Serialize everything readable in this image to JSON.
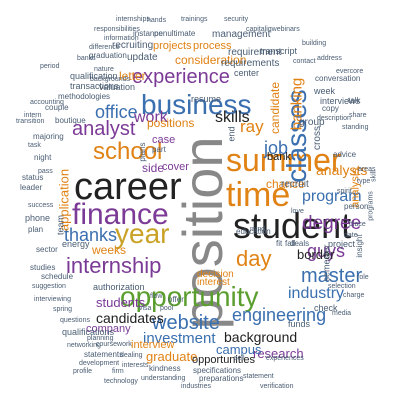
{
  "colors": {
    "black": "#222222",
    "grey": "#888888",
    "orange": "#e08214",
    "blue": "#3a6fb0",
    "green": "#5a9e2e",
    "purple": "#7b3a96",
    "gold": "#c9a227",
    "slate": "#4a5d73"
  },
  "words": [
    {
      "text": "position",
      "color": "grey",
      "rot": 270
    },
    {
      "text": "career",
      "color": "black",
      "rot": 0
    },
    {
      "text": "student",
      "color": "black",
      "rot": 0
    },
    {
      "text": "summer",
      "color": "orange",
      "rot": 0
    },
    {
      "text": "time",
      "color": "orange",
      "rot": 0
    },
    {
      "text": "opportunity",
      "color": "green",
      "rot": 0
    },
    {
      "text": "finance",
      "color": "purple",
      "rot": 0
    },
    {
      "text": "year",
      "color": "gold",
      "rot": 0
    },
    {
      "text": "business",
      "color": "blue",
      "rot": 0
    },
    {
      "text": "school",
      "color": "orange",
      "rot": 0
    },
    {
      "text": "classes",
      "color": "blue",
      "rot": 270
    },
    {
      "text": "internship",
      "color": "purple",
      "rot": 0
    },
    {
      "text": "experience",
      "color": "purple",
      "rot": 0
    },
    {
      "text": "analyst",
      "color": "purple",
      "rot": 0
    },
    {
      "text": "day",
      "color": "orange",
      "rot": 0
    },
    {
      "text": "website",
      "color": "blue",
      "rot": 0
    },
    {
      "text": "master",
      "color": "blue",
      "rot": 0
    },
    {
      "text": "degree",
      "color": "purple",
      "rot": 0
    },
    {
      "text": "engineering",
      "color": "blue",
      "rot": 0
    },
    {
      "text": "thanks",
      "color": "blue",
      "rot": 0
    },
    {
      "text": "office",
      "color": "blue",
      "rot": 0
    },
    {
      "text": "job",
      "color": "blue",
      "rot": 0
    },
    {
      "text": "program",
      "color": "blue",
      "rot": 0
    },
    {
      "text": "guys",
      "color": "purple",
      "rot": 0
    },
    {
      "text": "industry",
      "color": "blue",
      "rot": 0
    },
    {
      "text": "investment",
      "color": "blue",
      "rot": 0
    },
    {
      "text": "candidates",
      "color": "black",
      "rot": 0
    },
    {
      "text": "skills",
      "color": "black",
      "rot": 0
    },
    {
      "text": "work",
      "color": "purple",
      "rot": 0
    },
    {
      "text": "banking",
      "color": "orange",
      "rot": 270
    },
    {
      "text": "ray",
      "color": "orange",
      "rot": 0
    },
    {
      "text": "analysts",
      "color": "orange",
      "rot": 0
    },
    {
      "text": "students",
      "color": "purple",
      "rot": 0
    },
    {
      "text": "background",
      "color": "black",
      "rot": 0
    },
    {
      "text": "research",
      "color": "purple",
      "rot": 0
    },
    {
      "text": "graduate",
      "color": "orange",
      "rot": 0
    },
    {
      "text": "campus",
      "color": "blue",
      "rot": 0
    },
    {
      "text": "company",
      "color": "purple",
      "rot": 0
    },
    {
      "text": "positions",
      "color": "orange",
      "rot": 0
    },
    {
      "text": "consideration",
      "color": "orange",
      "rot": 0
    },
    {
      "text": "process",
      "color": "orange",
      "rot": 0
    },
    {
      "text": "projects",
      "color": "orange",
      "rot": 0
    },
    {
      "text": "management",
      "color": "slate",
      "rot": 0
    },
    {
      "text": "requirement",
      "color": "slate",
      "rot": 0
    },
    {
      "text": "requirements",
      "color": "slate",
      "rot": 0
    },
    {
      "text": "candidate",
      "color": "orange",
      "rot": 270
    },
    {
      "text": "letter",
      "color": "orange",
      "rot": 0
    },
    {
      "text": "weeks",
      "color": "orange",
      "rot": 0
    },
    {
      "text": "application",
      "color": "orange",
      "rot": 270
    },
    {
      "text": "chance",
      "color": "orange",
      "rot": 0
    },
    {
      "text": "border",
      "color": "black",
      "rot": 0
    },
    {
      "text": "bank",
      "color": "black",
      "rot": 0
    },
    {
      "text": "interview",
      "color": "orange",
      "rot": 0
    },
    {
      "text": "opportunities",
      "color": "black",
      "rot": 0
    },
    {
      "text": "decision",
      "color": "orange",
      "rot": 0
    },
    {
      "text": "interest",
      "color": "orange",
      "rot": 0
    },
    {
      "text": "side",
      "color": "purple",
      "rot": 0
    },
    {
      "text": "cover",
      "color": "purple",
      "rot": 0
    },
    {
      "text": "case",
      "color": "purple",
      "rot": 0
    },
    {
      "text": "recruit",
      "color": "slate",
      "rot": 0
    },
    {
      "text": "group",
      "color": "slate",
      "rot": 0
    },
    {
      "text": "check",
      "color": "slate",
      "rot": 0
    },
    {
      "text": "energy",
      "color": "slate",
      "rot": 0
    },
    {
      "text": "cross",
      "color": "slate",
      "rot": 270
    },
    {
      "text": "team",
      "color": "slate",
      "rot": 270
    },
    {
      "text": "project",
      "color": "slate",
      "rot": 0
    },
    {
      "text": "analysis",
      "color": "orange",
      "rot": 270
    },
    {
      "text": "interviews",
      "color": "slate",
      "rot": 0
    },
    {
      "text": "update",
      "color": "slate",
      "rot": 0
    },
    {
      "text": "recruiting",
      "color": "slate",
      "rot": 0
    },
    {
      "text": "valuation",
      "color": "slate",
      "rot": 0
    },
    {
      "text": "qualification",
      "color": "slate",
      "rot": 0
    },
    {
      "text": "qualifications",
      "color": "slate",
      "rot": 0
    },
    {
      "text": "transactions",
      "color": "slate",
      "rot": 0
    },
    {
      "text": "resume",
      "color": "slate",
      "rot": 0
    },
    {
      "text": "center",
      "color": "slate",
      "rot": 0
    },
    {
      "text": "graduation",
      "color": "slate",
      "rot": 0
    },
    {
      "text": "instance",
      "color": "slate",
      "rot": 0
    },
    {
      "text": "penultimate",
      "color": "slate",
      "rot": 0
    },
    {
      "text": "internships",
      "color": "slate",
      "rot": 0
    },
    {
      "text": "responsibilities",
      "color": "slate",
      "rot": 0
    },
    {
      "text": "trainings",
      "color": "slate",
      "rot": 0
    },
    {
      "text": "security",
      "color": "slate",
      "rot": 0
    },
    {
      "text": "capitaliqwebinars",
      "color": "slate",
      "rot": 0
    },
    {
      "text": "transcript",
      "color": "slate",
      "rot": 0
    },
    {
      "text": "conversation",
      "color": "slate",
      "rot": 0
    },
    {
      "text": "week",
      "color": "slate",
      "rot": 0
    },
    {
      "text": "evercore",
      "color": "slate",
      "rot": 0
    },
    {
      "text": "talk",
      "color": "slate",
      "rot": 0
    },
    {
      "text": "copy",
      "color": "slate",
      "rot": 0
    },
    {
      "text": "description",
      "color": "slate",
      "rot": 0
    },
    {
      "text": "standing",
      "color": "slate",
      "rot": 0
    },
    {
      "text": "advice",
      "color": "slate",
      "rot": 0
    },
    {
      "text": "person",
      "color": "slate",
      "rot": 0
    },
    {
      "text": "place",
      "color": "slate",
      "rot": 0
    },
    {
      "text": "love",
      "color": "slate",
      "rot": 0
    },
    {
      "text": "semester",
      "color": "slate",
      "rot": 270
    },
    {
      "text": "deals",
      "color": "slate",
      "rot": 0
    },
    {
      "text": "fit",
      "color": "slate",
      "rot": 0
    },
    {
      "text": "fall",
      "color": "slate",
      "rot": 0
    },
    {
      "text": "funds",
      "color": "slate",
      "rot": 0
    },
    {
      "text": "experiences",
      "color": "slate",
      "rot": 0
    },
    {
      "text": "kindness",
      "color": "slate",
      "rot": 0
    },
    {
      "text": "specifications",
      "color": "slate",
      "rot": 0
    },
    {
      "text": "preparations",
      "color": "slate",
      "rot": 0
    },
    {
      "text": "statements",
      "color": "slate",
      "rot": 0
    },
    {
      "text": "statement",
      "color": "slate",
      "rot": 0
    },
    {
      "text": "verification",
      "color": "slate",
      "rot": 0
    },
    {
      "text": "understanding",
      "color": "slate",
      "rot": 0
    },
    {
      "text": "industries",
      "color": "slate",
      "rot": 0
    },
    {
      "text": "technology",
      "color": "slate",
      "rot": 0
    },
    {
      "text": "development",
      "color": "slate",
      "rot": 0
    },
    {
      "text": "networking",
      "color": "slate",
      "rot": 0
    },
    {
      "text": "coursework",
      "color": "slate",
      "rot": 0
    },
    {
      "text": "planning",
      "color": "slate",
      "rot": 0
    },
    {
      "text": "schedule",
      "color": "slate",
      "rot": 0
    },
    {
      "text": "studies",
      "color": "slate",
      "rot": 0
    },
    {
      "text": "suggestion",
      "color": "slate",
      "rot": 0
    },
    {
      "text": "interviewing",
      "color": "slate",
      "rot": 0
    },
    {
      "text": "spring",
      "color": "slate",
      "rot": 0
    },
    {
      "text": "questions",
      "color": "slate",
      "rot": 0
    },
    {
      "text": "authorization",
      "color": "slate",
      "rot": 0
    },
    {
      "text": "phone",
      "color": "slate",
      "rot": 0
    },
    {
      "text": "plan",
      "color": "slate",
      "rot": 0
    },
    {
      "text": "success",
      "color": "slate",
      "rot": 0
    },
    {
      "text": "status",
      "color": "slate",
      "rot": 0
    },
    {
      "text": "pass",
      "color": "slate",
      "rot": 0
    },
    {
      "text": "leader",
      "color": "slate",
      "rot": 0
    },
    {
      "text": "night",
      "color": "slate",
      "rot": 0
    },
    {
      "text": "majoring",
      "color": "slate",
      "rot": 0
    },
    {
      "text": "task",
      "color": "slate",
      "rot": 0
    },
    {
      "text": "boutique",
      "color": "slate",
      "rot": 0
    },
    {
      "text": "couple",
      "color": "slate",
      "rot": 0
    },
    {
      "text": "methodologies",
      "color": "slate",
      "rot": 0
    },
    {
      "text": "period",
      "color": "slate",
      "rot": 0
    },
    {
      "text": "banks",
      "color": "slate",
      "rot": 0
    },
    {
      "text": "nature",
      "color": "slate",
      "rot": 0
    },
    {
      "text": "backgrounds",
      "color": "slate",
      "rot": 0
    },
    {
      "text": "transition",
      "color": "slate",
      "rot": 0
    },
    {
      "text": "accounting",
      "color": "slate",
      "rot": 0
    },
    {
      "text": "charge",
      "color": "slate",
      "rot": 0
    },
    {
      "text": "media",
      "color": "slate",
      "rot": 0
    },
    {
      "text": "selection",
      "color": "slate",
      "rot": 0
    },
    {
      "text": "sell",
      "color": "slate",
      "rot": 0
    },
    {
      "text": "offer",
      "color": "slate",
      "rot": 0
    },
    {
      "text": "flow",
      "color": "slate",
      "rot": 0
    },
    {
      "text": "pool",
      "color": "slate",
      "rot": 0
    },
    {
      "text": "visa",
      "color": "slate",
      "rot": 0
    },
    {
      "text": "education",
      "color": "slate",
      "rot": 0
    },
    {
      "text": "mind",
      "color": "slate",
      "rot": 270
    },
    {
      "text": "end",
      "color": "slate",
      "rot": 0
    },
    {
      "text": "part",
      "color": "slate",
      "rot": 270
    },
    {
      "text": "plans",
      "color": "slate",
      "rot": 0
    },
    {
      "text": "dealing",
      "color": "slate",
      "rot": 0
    },
    {
      "text": "interests",
      "color": "slate",
      "rot": 0
    },
    {
      "text": "firm",
      "color": "slate",
      "rot": 0
    },
    {
      "text": "profile",
      "color": "slate",
      "rot": 0
    },
    {
      "text": "building",
      "color": "slate",
      "rot": 0
    },
    {
      "text": "address",
      "color": "slate",
      "rot": 0
    },
    {
      "text": "contact",
      "color": "slate",
      "rot": 0
    },
    {
      "text": "share",
      "color": "slate",
      "rot": 0
    },
    {
      "text": "areas",
      "color": "slate",
      "rot": 0
    },
    {
      "text": "type",
      "color": "slate",
      "rot": 270
    },
    {
      "text": "programs",
      "color": "slate",
      "rot": 270
    },
    {
      "text": "insight",
      "color": "slate",
      "rot": 270
    },
    {
      "text": "skill",
      "color": "slate",
      "rot": 0
    },
    {
      "text": "date",
      "color": "slate",
      "rot": 0
    },
    {
      "text": "spirit",
      "color": "slate",
      "rot": 0
    },
    {
      "text": "hands",
      "color": "slate",
      "rot": 0
    },
    {
      "text": "information",
      "color": "slate",
      "rot": 0
    },
    {
      "text": "difference",
      "color": "slate",
      "rot": 0
    },
    {
      "text": "intern",
      "color": "slate",
      "rot": 0
    },
    {
      "text": "sector",
      "color": "slate",
      "rot": 0
    },
    {
      "text": "role",
      "color": "slate",
      "rot": 0
    }
  ]
}
